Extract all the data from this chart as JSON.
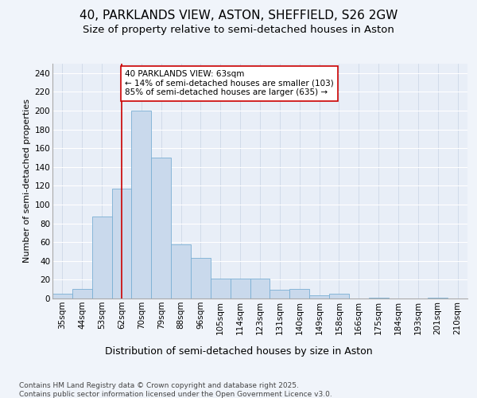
{
  "title_line1": "40, PARKLANDS VIEW, ASTON, SHEFFIELD, S26 2GW",
  "title_line2": "Size of property relative to semi-detached houses in Aston",
  "xlabel": "Distribution of semi-detached houses by size in Aston",
  "ylabel": "Number of semi-detached properties",
  "categories": [
    "35sqm",
    "44sqm",
    "53sqm",
    "62sqm",
    "70sqm",
    "79sqm",
    "88sqm",
    "96sqm",
    "105sqm",
    "114sqm",
    "123sqm",
    "131sqm",
    "140sqm",
    "149sqm",
    "158sqm",
    "166sqm",
    "175sqm",
    "184sqm",
    "193sqm",
    "201sqm",
    "210sqm"
  ],
  "values": [
    5,
    10,
    87,
    117,
    200,
    150,
    58,
    43,
    21,
    21,
    21,
    9,
    10,
    3,
    5,
    0,
    1,
    0,
    0,
    1,
    0
  ],
  "bar_color": "#c9d9ec",
  "bar_edge_color": "#7aafd4",
  "vline_x_index": 3,
  "vline_color": "#cc0000",
  "annotation_text": "40 PARKLANDS VIEW: 63sqm\n← 14% of semi-detached houses are smaller (103)\n85% of semi-detached houses are larger (635) →",
  "annotation_box_color": "#ffffff",
  "annotation_box_edge": "#cc0000",
  "ylim": [
    0,
    250
  ],
  "yticks": [
    0,
    20,
    40,
    60,
    80,
    100,
    120,
    140,
    160,
    180,
    200,
    220,
    240
  ],
  "fig_background": "#f0f4fa",
  "plot_background": "#e8eef7",
  "footer_line1": "Contains HM Land Registry data © Crown copyright and database right 2025.",
  "footer_line2": "Contains public sector information licensed under the Open Government Licence v3.0.",
  "title_fontsize": 11,
  "subtitle_fontsize": 9.5,
  "xlabel_fontsize": 9,
  "ylabel_fontsize": 8,
  "tick_fontsize": 7.5,
  "annotation_fontsize": 7.5,
  "footer_fontsize": 6.5
}
